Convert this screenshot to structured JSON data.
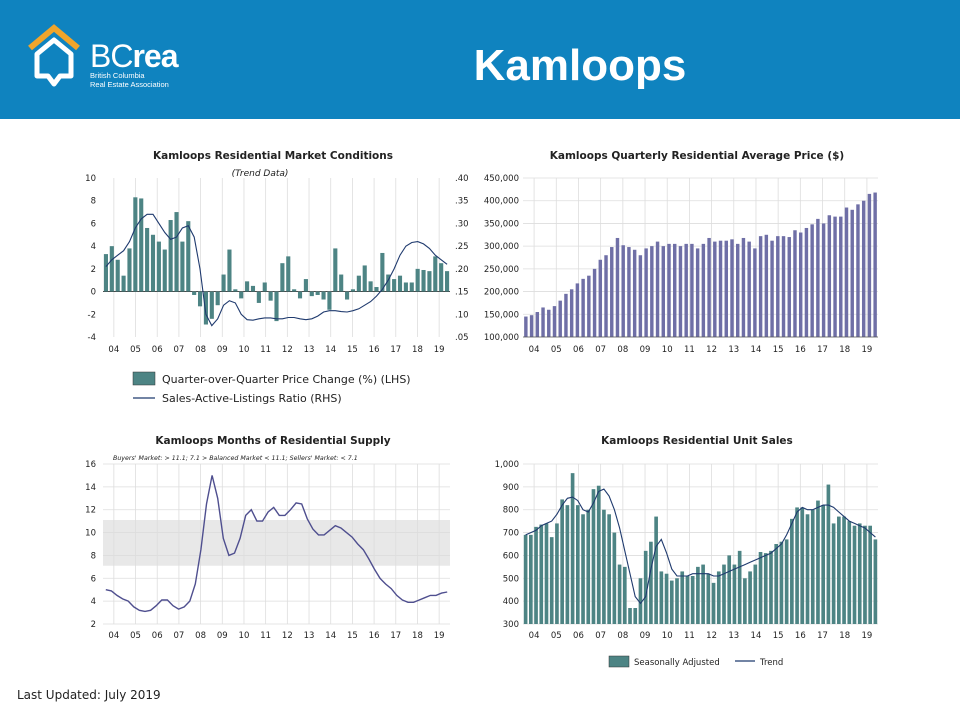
{
  "header": {
    "brand_bc": "BC",
    "brand_rea": "rea",
    "brand_line1": "British Columbia",
    "brand_line2": "Real Estate Association",
    "title": "Kamloops"
  },
  "footer": {
    "last_updated": "Last Updated: July 2019"
  },
  "colors": {
    "header_bg": "#0f83bf",
    "bar_teal": "#4d8484",
    "line_navy": "#1f3a6e",
    "bar_purple": "#6f6fa6",
    "balanced_band": "#e8e8e8"
  },
  "chart_data": [
    {
      "id": "market_conditions",
      "type": "bar",
      "title": "Kamloops Residential Market Conditions",
      "subtitle": "(Trend Data)",
      "x_tick_labels": [
        "04",
        "05",
        "06",
        "07",
        "08",
        "09",
        "10",
        "11",
        "12",
        "13",
        "14",
        "15",
        "16",
        "17",
        "18",
        "19"
      ],
      "y_left_ticks": [
        "10",
        "8",
        "6",
        "4",
        "2",
        "0",
        "-2",
        "-4"
      ],
      "y_right_ticks": [
        ".40",
        ".35",
        ".30",
        ".25",
        ".20",
        ".15",
        ".10",
        ".05"
      ],
      "ylim_left": [
        -4,
        10
      ],
      "ylim_right": [
        0.05,
        0.4
      ],
      "legend": {
        "bar_label": "Quarter-over-Quarter Price Change (%) (LHS)",
        "line_label": "Sales-Active-Listings Ratio (RHS)"
      },
      "series": [
        {
          "values": [
            3.3,
            4,
            2.8,
            1.4,
            3.8,
            8.3,
            8.2,
            5.6,
            5,
            4.4,
            3.7,
            6.3,
            7,
            4.4,
            6.2,
            -0.3,
            -1.3,
            -2.9,
            -2.4,
            -1.2,
            1.5,
            3.7,
            0.2,
            -0.6,
            0.9,
            0.5,
            -1,
            0.8,
            -0.8,
            -2.6,
            2.5,
            3.1,
            0.2,
            -0.6,
            1.1,
            -0.4,
            -0.3,
            -0.7,
            -1.6,
            3.8,
            1.5,
            -0.7,
            0.2,
            1.4,
            2.3,
            0.9,
            0.4,
            3.4,
            1.5,
            1.1,
            1.4,
            0.8,
            0.8,
            2,
            1.9,
            1.8,
            3.1,
            2.5,
            1.8
          ]
        },
        {
          "values": [
            0.205,
            0.22,
            0.23,
            0.24,
            0.26,
            0.29,
            0.31,
            0.32,
            0.32,
            0.3,
            0.28,
            0.265,
            0.27,
            0.29,
            0.295,
            0.27,
            0.2,
            0.1,
            0.075,
            0.09,
            0.12,
            0.13,
            0.125,
            0.1,
            0.088,
            0.087,
            0.09,
            0.092,
            0.092,
            0.09,
            0.09,
            0.093,
            0.093,
            0.09,
            0.088,
            0.09,
            0.096,
            0.105,
            0.108,
            0.108,
            0.106,
            0.105,
            0.108,
            0.112,
            0.12,
            0.128,
            0.14,
            0.155,
            0.175,
            0.2,
            0.23,
            0.25,
            0.258,
            0.26,
            0.255,
            0.245,
            0.23,
            0.22,
            0.21
          ]
        }
      ]
    },
    {
      "id": "average_price",
      "type": "bar",
      "title": "Kamloops Quarterly Residential Average Price ($)",
      "x_tick_labels": [
        "04",
        "05",
        "06",
        "07",
        "08",
        "09",
        "10",
        "11",
        "12",
        "13",
        "14",
        "15",
        "16",
        "17",
        "18",
        "19"
      ],
      "y_ticks": [
        "450,000",
        "400,000",
        "350,000",
        "300,000",
        "250,000",
        "200,000",
        "150,000",
        "100,000"
      ],
      "ylim": [
        100000,
        450000
      ],
      "values": [
        145000,
        148000,
        155000,
        165000,
        160000,
        168000,
        180000,
        195000,
        205000,
        218000,
        228000,
        235000,
        250000,
        270000,
        280000,
        298000,
        318000,
        302000,
        298000,
        292000,
        280000,
        295000,
        300000,
        310000,
        300000,
        305000,
        305000,
        300000,
        305000,
        305000,
        295000,
        305000,
        318000,
        310000,
        312000,
        312000,
        315000,
        305000,
        318000,
        310000,
        295000,
        322000,
        325000,
        312000,
        322000,
        322000,
        320000,
        335000,
        330000,
        340000,
        348000,
        360000,
        350000,
        368000,
        365000,
        365000,
        385000,
        380000,
        392000,
        400000,
        415000,
        418000
      ]
    },
    {
      "id": "months_supply",
      "type": "line",
      "title": "Kamloops Months of Residential Supply",
      "subtitle": "Buyers' Market: > 11.1; 7.1 > Balanced Market < 11.1; Sellers' Market: < 7.1",
      "x_tick_labels": [
        "04",
        "05",
        "06",
        "07",
        "08",
        "09",
        "10",
        "11",
        "12",
        "13",
        "14",
        "15",
        "16",
        "17",
        "18",
        "19"
      ],
      "y_ticks": [
        "16",
        "14",
        "12",
        "10",
        "8",
        "6",
        "4",
        "2"
      ],
      "ylim": [
        2,
        16
      ],
      "balanced_band": [
        7.1,
        11.1
      ],
      "values": [
        5,
        4.9,
        4.5,
        4.2,
        4,
        3.5,
        3.2,
        3.1,
        3.2,
        3.6,
        4.1,
        4.1,
        3.6,
        3.3,
        3.5,
        4,
        5.5,
        8.5,
        12.5,
        15,
        13,
        9.5,
        8,
        8.2,
        9.5,
        11.5,
        12,
        11,
        11,
        11.8,
        12.2,
        11.5,
        11.5,
        12,
        12.6,
        12.5,
        11.2,
        10.3,
        9.8,
        9.8,
        10.2,
        10.6,
        10.4,
        10,
        9.6,
        9,
        8.5,
        7.7,
        6.8,
        6,
        5.5,
        5.1,
        4.5,
        4.1,
        3.9,
        3.9,
        4.1,
        4.3,
        4.5,
        4.5,
        4.7,
        4.8
      ]
    },
    {
      "id": "unit_sales",
      "type": "bar",
      "title": "Kamloops Residential Unit Sales",
      "x_tick_labels": [
        "04",
        "05",
        "06",
        "07",
        "08",
        "09",
        "10",
        "11",
        "12",
        "13",
        "14",
        "15",
        "16",
        "17",
        "18",
        "19"
      ],
      "y_ticks": [
        "1,000",
        "900",
        "800",
        "700",
        "600",
        "500",
        "400",
        "300"
      ],
      "ylim": [
        300,
        1000
      ],
      "legend": {
        "bar_label": "Seasonally Adjusted",
        "line_label": "Trend"
      },
      "series": [
        {
          "values": [
            690,
            690,
            725,
            735,
            740,
            680,
            740,
            845,
            820,
            960,
            820,
            780,
            800,
            890,
            905,
            800,
            780,
            700,
            560,
            550,
            370,
            370,
            500,
            620,
            660,
            770,
            530,
            520,
            490,
            500,
            530,
            510,
            510,
            550,
            560,
            520,
            480,
            530,
            560,
            600,
            560,
            620,
            500,
            530,
            560,
            615,
            610,
            620,
            650,
            660,
            670,
            760,
            810,
            810,
            780,
            800,
            840,
            820,
            910,
            740,
            770,
            770,
            750,
            730,
            740,
            730,
            730,
            670
          ]
        },
        {
          "values": [
            690,
            700,
            710,
            730,
            740,
            750,
            780,
            820,
            850,
            855,
            840,
            800,
            790,
            830,
            880,
            890,
            860,
            800,
            720,
            620,
            520,
            420,
            390,
            420,
            540,
            640,
            670,
            610,
            540,
            510,
            510,
            510,
            520,
            520,
            520,
            520,
            510,
            510,
            520,
            530,
            540,
            550,
            560,
            570,
            580,
            590,
            600,
            610,
            630,
            650,
            690,
            740,
            790,
            810,
            800,
            800,
            810,
            820,
            820,
            810,
            790,
            770,
            750,
            740,
            730,
            720,
            700,
            680
          ]
        }
      ]
    }
  ]
}
